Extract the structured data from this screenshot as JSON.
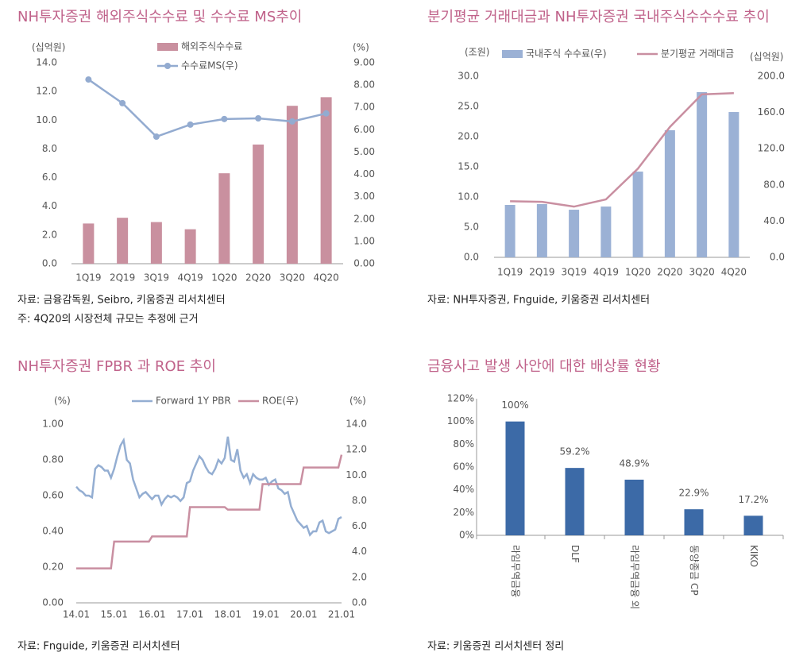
{
  "chart_data": [
    {
      "type": "bar",
      "title": "NH투자증권 해외주식수수료 및 수수료 MS추이",
      "y_label": "(십억원)",
      "y2_label": "(%)",
      "categories": [
        "1Q19",
        "2Q19",
        "3Q19",
        "4Q19",
        "1Q20",
        "2Q20",
        "3Q20",
        "4Q20"
      ],
      "series": [
        {
          "name": "해외주식수수료",
          "type": "bar",
          "color": "#c9909f",
          "values": [
            2.8,
            3.2,
            2.9,
            2.4,
            6.3,
            8.3,
            11.0,
            11.6
          ]
        },
        {
          "name": "수수료MS(우)",
          "type": "line",
          "axis": "y2",
          "color": "#93abd0",
          "marker": "o",
          "values": [
            8.25,
            7.19,
            5.69,
            6.23,
            6.48,
            6.51,
            6.37,
            6.73
          ]
        }
      ],
      "ylim": [
        0,
        14
      ],
      "yticks": [
        {
          "value": 0,
          "label": "0.0"
        },
        {
          "value": 2,
          "label": "2.0"
        },
        {
          "value": 4,
          "label": "4.0"
        },
        {
          "value": 6,
          "label": "6.0"
        },
        {
          "value": 8,
          "label": "8.0"
        },
        {
          "value": 10,
          "label": "10.0"
        },
        {
          "value": 12,
          "label": "12.0"
        },
        {
          "value": 14,
          "label": "14.0"
        }
      ],
      "y2lim": [
        0,
        9
      ],
      "y2ticks": [
        {
          "value": 0,
          "label": "0.00"
        },
        {
          "value": 1,
          "label": "1.00"
        },
        {
          "value": 2,
          "label": "2.00"
        },
        {
          "value": 3,
          "label": "3.00"
        },
        {
          "value": 4,
          "label": "4.00"
        },
        {
          "value": 5,
          "label": "5.00"
        },
        {
          "value": 6,
          "label": "6.00"
        },
        {
          "value": 7,
          "label": "7.00"
        },
        {
          "value": 8,
          "label": "8.00"
        },
        {
          "value": 9,
          "label": "9.00"
        }
      ],
      "source": "자료: 금융감독원, Seibro, 키움증권 리서치센터",
      "note": "주: 4Q20의 시장전체 규모는 추정에 근거"
    },
    {
      "type": "bar",
      "title": "분기평균 거래대금과 NH투자증권 국내주식수수수료 추이",
      "y_label": "(조원)",
      "y2_label": "(십억원)",
      "categories": [
        "1Q19",
        "2Q19",
        "3Q19",
        "4Q19",
        "1Q20",
        "2Q20",
        "3Q20",
        "4Q20"
      ],
      "series": [
        {
          "name": "국내주식 수수료(우)",
          "type": "bar",
          "axis": "y2",
          "color": "#9bb1d5",
          "values": [
            57.9,
            58.8,
            52.6,
            56.1,
            94.7,
            140.4,
            182.5,
            160.5
          ]
        },
        {
          "name": "분기평균 거래대금",
          "type": "line",
          "color": "#c98fa1",
          "values": [
            9.3,
            9.2,
            8.4,
            9.6,
            14.7,
            21.6,
            27.0,
            27.2
          ]
        }
      ],
      "ylim": [
        0,
        30
      ],
      "yticks": [
        {
          "value": 0,
          "label": "0.0"
        },
        {
          "value": 5,
          "label": "5.0"
        },
        {
          "value": 10,
          "label": "10.0"
        },
        {
          "value": 15,
          "label": "15.0"
        },
        {
          "value": 20,
          "label": "20.0"
        },
        {
          "value": 25,
          "label": "25.0"
        },
        {
          "value": 30,
          "label": "30.0"
        }
      ],
      "y2lim": [
        0,
        200
      ],
      "y2ticks": [
        {
          "value": 0,
          "label": "0.0"
        },
        {
          "value": 40,
          "label": "40.0"
        },
        {
          "value": 80,
          "label": "80.0"
        },
        {
          "value": 120,
          "label": "120.0"
        },
        {
          "value": 160,
          "label": "160.0"
        },
        {
          "value": 200,
          "label": "200.0"
        }
      ],
      "source": "자료: NH투자증권, Fnguide, 키움증권 리서치센터"
    },
    {
      "type": "line",
      "title": "NH투자증권 FPBR 과 ROE 추이",
      "y_label": "(%)",
      "y2_label": "(%)",
      "categories": [
        "14.01",
        "14.02",
        "14.03",
        "14.04",
        "14.05",
        "14.06",
        "14.07",
        "14.08",
        "14.09",
        "14.10",
        "14.11",
        "14.12",
        "15.01",
        "15.02",
        "15.03",
        "15.04",
        "15.05",
        "15.06",
        "15.07",
        "15.08",
        "15.09",
        "15.10",
        "15.11",
        "15.12",
        "16.01",
        "16.02",
        "16.03",
        "16.04",
        "16.05",
        "16.06",
        "16.07",
        "16.08",
        "16.09",
        "16.10",
        "16.11",
        "16.12",
        "17.01",
        "17.02",
        "17.03",
        "17.04",
        "17.05",
        "17.06",
        "17.07",
        "17.08",
        "17.09",
        "17.10",
        "17.11",
        "17.12",
        "18.01",
        "18.02",
        "18.03",
        "18.04",
        "18.05",
        "18.06",
        "18.07",
        "18.08",
        "18.09",
        "18.10",
        "18.11",
        "18.12",
        "19.01",
        "19.02",
        "19.03",
        "19.04",
        "19.05",
        "19.06",
        "19.07",
        "19.08",
        "19.09",
        "19.10",
        "19.11",
        "19.12",
        "20.01",
        "20.02",
        "20.03",
        "20.04",
        "20.05",
        "20.06",
        "20.07",
        "20.08",
        "20.09",
        "20.10",
        "20.11",
        "20.12",
        "21.01"
      ],
      "series": [
        {
          "name": "Forward 1Y PBR",
          "type": "line",
          "color": "#94aed2",
          "values": [
            0.65,
            0.63,
            0.62,
            0.6,
            0.6,
            0.59,
            0.75,
            0.77,
            0.76,
            0.74,
            0.74,
            0.7,
            0.75,
            0.82,
            0.88,
            0.91,
            0.8,
            0.78,
            0.69,
            0.64,
            0.59,
            0.61,
            0.62,
            0.6,
            0.58,
            0.6,
            0.6,
            0.55,
            0.58,
            0.6,
            0.59,
            0.6,
            0.59,
            0.57,
            0.59,
            0.67,
            0.68,
            0.74,
            0.78,
            0.82,
            0.8,
            0.76,
            0.73,
            0.72,
            0.75,
            0.8,
            0.78,
            0.81,
            0.93,
            0.8,
            0.79,
            0.86,
            0.74,
            0.7,
            0.72,
            0.67,
            0.72,
            0.7,
            0.69,
            0.69,
            0.7,
            0.66,
            0.68,
            0.69,
            0.64,
            0.63,
            0.61,
            0.62,
            0.54,
            0.5,
            0.46,
            0.44,
            0.42,
            0.43,
            0.38,
            0.4,
            0.4,
            0.45,
            0.46,
            0.4,
            0.39,
            0.4,
            0.41,
            0.47,
            0.48
          ]
        },
        {
          "name": "ROE(우)",
          "type": "line",
          "axis": "y2",
          "color": "#c98fa1",
          "values": [
            2.7,
            2.7,
            2.7,
            2.7,
            2.7,
            2.7,
            2.7,
            2.7,
            2.7,
            2.7,
            2.7,
            2.7,
            4.8,
            4.8,
            4.8,
            4.8,
            4.8,
            4.8,
            4.8,
            4.8,
            4.8,
            4.8,
            4.8,
            4.8,
            5.2,
            5.2,
            5.2,
            5.2,
            5.2,
            5.2,
            5.2,
            5.2,
            5.2,
            5.2,
            5.2,
            5.2,
            7.5,
            7.5,
            7.5,
            7.5,
            7.5,
            7.5,
            7.5,
            7.5,
            7.5,
            7.5,
            7.5,
            7.5,
            7.3,
            7.3,
            7.3,
            7.3,
            7.3,
            7.3,
            7.3,
            7.3,
            7.3,
            7.3,
            7.3,
            9.3,
            9.3,
            9.3,
            9.3,
            9.3,
            9.3,
            9.3,
            9.3,
            9.3,
            9.3,
            9.3,
            9.3,
            9.3,
            10.6,
            10.6,
            10.6,
            10.6,
            10.6,
            10.6,
            10.6,
            10.6,
            10.6,
            10.6,
            10.6,
            10.6,
            11.6
          ]
        }
      ],
      "ylim": [
        0,
        1
      ],
      "yticks": [
        {
          "value": 0,
          "label": "0.00"
        },
        {
          "value": 0.2,
          "label": "0.20"
        },
        {
          "value": 0.4,
          "label": "0.40"
        },
        {
          "value": 0.6,
          "label": "0.60"
        },
        {
          "value": 0.8,
          "label": "0.80"
        },
        {
          "value": 1,
          "label": "1.00"
        }
      ],
      "y2lim": [
        0,
        14
      ],
      "y2ticks": [
        {
          "value": 0,
          "label": "0.0"
        },
        {
          "value": 2,
          "label": "2.0"
        },
        {
          "value": 4,
          "label": "4.0"
        },
        {
          "value": 6,
          "label": "6.0"
        },
        {
          "value": 8,
          "label": "8.0"
        },
        {
          "value": 10,
          "label": "10.0"
        },
        {
          "value": 12,
          "label": "12.0"
        },
        {
          "value": 14,
          "label": "14.0"
        }
      ],
      "source": "자료: Fnguide, 키움증권 리서치센터"
    },
    {
      "type": "bar",
      "title": "금융사고 발생 사안에 대한 배상률 현황",
      "categories": [
        "라임무역금융",
        "DLF",
        "라임무역금융 외",
        "동양종금 CP",
        "KIKO"
      ],
      "values": [
        100,
        59.2,
        48.9,
        22.9,
        17.2
      ],
      "value_labels": [
        "100%",
        "59.2%",
        "48.9%",
        "22.9%",
        "17.2%"
      ],
      "color": "#3c6aa7",
      "ylim": [
        0,
        120
      ],
      "yticks": [
        {
          "value": 0,
          "label": "0%"
        },
        {
          "value": 20,
          "label": "20%"
        },
        {
          "value": 40,
          "label": "40%"
        },
        {
          "value": 60,
          "label": "60%"
        },
        {
          "value": 80,
          "label": "80%"
        },
        {
          "value": 100,
          "label": "100%"
        },
        {
          "value": 120,
          "label": "120%"
        }
      ],
      "source": "자료: 키움증권 리서치센터 정리"
    }
  ]
}
